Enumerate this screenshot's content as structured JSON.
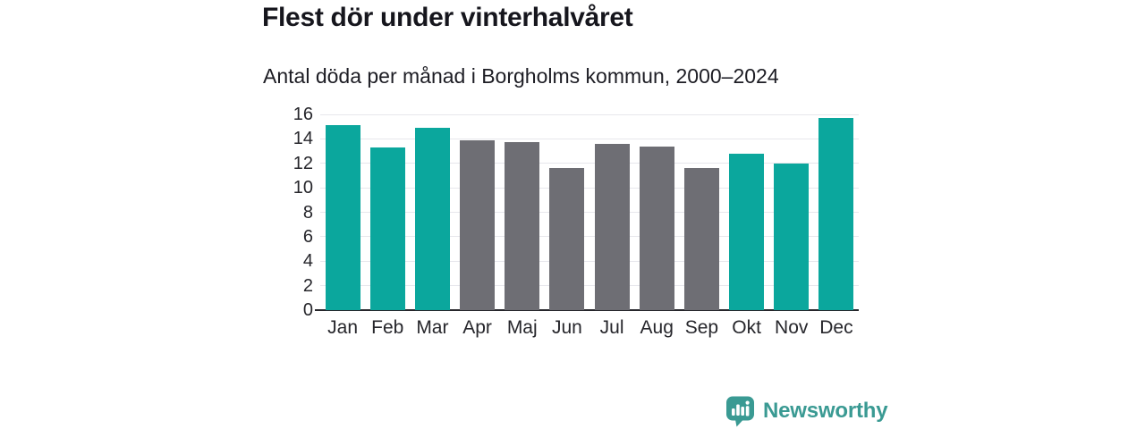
{
  "header": {
    "title": "Flest dör under vinterhalvåret",
    "subtitle": "Antal döda per månad i Borgholms kommun, 2000–2024"
  },
  "chart_data": {
    "type": "bar",
    "title": "Flest dör under vinterhalvåret",
    "subtitle": "Antal döda per månad i Borgholms kommun, 2000–2024",
    "categories": [
      "Jan",
      "Feb",
      "Mar",
      "Apr",
      "Maj",
      "Jun",
      "Jul",
      "Aug",
      "Sep",
      "Okt",
      "Nov",
      "Dec"
    ],
    "values": [
      15.1,
      13.3,
      14.9,
      13.9,
      13.7,
      11.6,
      13.6,
      13.4,
      11.6,
      12.8,
      12.0,
      15.7
    ],
    "seasons": [
      "winter",
      "winter",
      "winter",
      "summer",
      "summer",
      "summer",
      "summer",
      "summer",
      "summer",
      "winter",
      "winter",
      "winter"
    ],
    "xlabel": "",
    "ylabel": "",
    "ylim": [
      0,
      16
    ],
    "yticks": [
      0,
      2,
      4,
      6,
      8,
      10,
      12,
      14,
      16
    ],
    "grid": "horizontal",
    "legend": "none"
  },
  "colors": {
    "winter_bar": "#0ba79d",
    "summer_bar": "#6e6e74",
    "gridline": "#e7e7ec",
    "axis_line": "#26262b",
    "tick_text": "#26262b",
    "title_text": "#16161d",
    "brand_teal": "#3a9a93"
  },
  "footer": {
    "brand": "Newsworthy",
    "logo_icon": "bar-chart-speech-bubble"
  }
}
